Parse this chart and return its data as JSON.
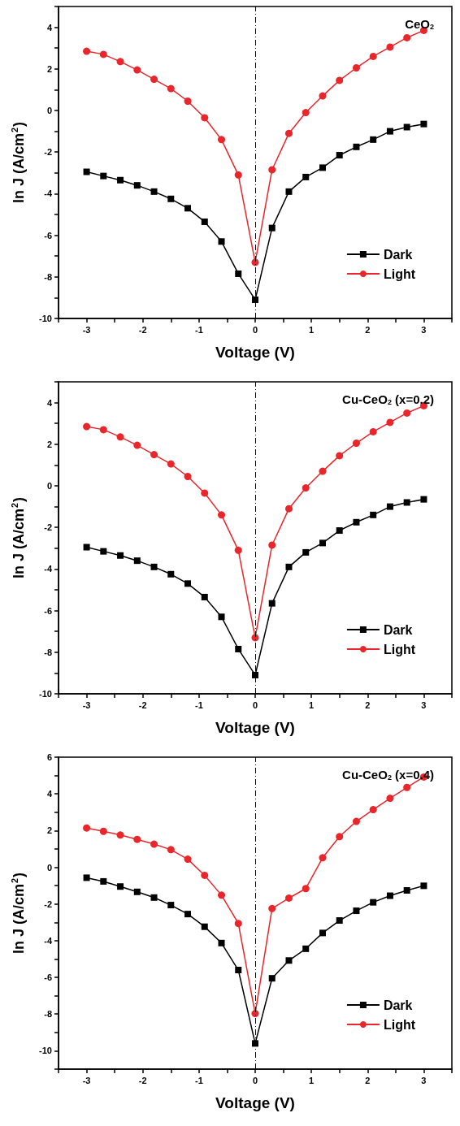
{
  "chart_data": [
    {
      "type": "line",
      "annotations": [
        "CeO$_{2}$"
      ],
      "xlabel": "Voltage (V)",
      "ylabel": "ln J (A/cm$^{2}$)",
      "x": [
        -3,
        -2.7,
        -2.4,
        -2.1,
        -1.8,
        -1.5,
        -1.2,
        -0.9,
        -0.6,
        -0.3,
        0,
        0.3,
        0.6,
        0.9,
        1.2,
        1.5,
        1.8,
        2.1,
        2.4,
        2.7,
        3
      ],
      "series": [
        {
          "name": "Dark",
          "color": "#000000",
          "marker": "square",
          "values": [
            -2.95,
            -3.15,
            -3.35,
            -3.6,
            -3.9,
            -4.25,
            -4.7,
            -5.35,
            -6.3,
            -7.85,
            -9.1,
            -5.65,
            -3.9,
            -3.2,
            -2.75,
            -2.15,
            -1.75,
            -1.4,
            -1.0,
            -0.8,
            -0.65
          ]
        },
        {
          "name": "Light",
          "color": "#e8262b",
          "marker": "circle",
          "values": [
            2.85,
            2.7,
            2.35,
            1.95,
            1.5,
            1.05,
            0.45,
            -0.35,
            -1.4,
            -3.1,
            -7.3,
            -2.85,
            -1.1,
            -0.1,
            0.7,
            1.45,
            2.05,
            2.6,
            3.05,
            3.5,
            3.85
          ]
        }
      ],
      "xlim": [
        -3.5,
        3.5
      ],
      "xticks": [
        {
          "value": -3.5,
          "label": null
        },
        -3,
        {
          "value": -2.5,
          "label": null
        },
        -2,
        {
          "value": -1.5,
          "label": null
        },
        -1,
        {
          "value": -0.5,
          "label": null
        },
        0,
        {
          "value": 0.5,
          "label": null
        },
        1,
        {
          "value": 1.5,
          "label": null
        },
        2,
        {
          "value": 2.5,
          "label": null
        },
        3,
        {
          "value": 3.5,
          "label": null
        }
      ],
      "ylim": [
        -10,
        5
      ],
      "yticks": [
        -10,
        {
          "value": -9,
          "label": null
        },
        -8,
        {
          "value": -7,
          "label": null
        },
        -6,
        {
          "value": -5,
          "label": null
        },
        -4,
        {
          "value": -3,
          "label": null
        },
        -2,
        {
          "value": -1,
          "label": null
        },
        0,
        {
          "value": 1,
          "label": null
        },
        2,
        {
          "value": 3,
          "label": null
        },
        4,
        {
          "value": 5,
          "label": null
        }
      ],
      "ref_lines": [
        {
          "axis": "x",
          "value": 0,
          "color": "#000000",
          "line_style": "dashed"
        }
      ],
      "grid": false,
      "legend": "bottom right",
      "line_style": "solid"
    },
    {
      "type": "line",
      "annotations": [
        "Cu-CeO$_{2}$ (x=0.2)"
      ],
      "xlabel": "Voltage (V)",
      "ylabel": "ln J (A/cm$^{2}$)",
      "x": [
        -3,
        -2.7,
        -2.4,
        -2.1,
        -1.8,
        -1.5,
        -1.2,
        -0.9,
        -0.6,
        -0.3,
        0,
        0.3,
        0.6,
        0.9,
        1.2,
        1.5,
        1.8,
        2.1,
        2.4,
        2.7,
        3
      ],
      "series": [
        {
          "name": "Dark",
          "color": "#000000",
          "marker": "square",
          "values": [
            -2.95,
            -3.15,
            -3.35,
            -3.6,
            -3.9,
            -4.25,
            -4.7,
            -5.35,
            -6.3,
            -7.85,
            -9.1,
            -5.65,
            -3.9,
            -3.2,
            -2.75,
            -2.15,
            -1.75,
            -1.4,
            -1.0,
            -0.8,
            -0.65
          ]
        },
        {
          "name": "Light",
          "color": "#e8262b",
          "marker": "circle",
          "values": [
            2.85,
            2.7,
            2.35,
            1.95,
            1.5,
            1.05,
            0.45,
            -0.35,
            -1.4,
            -3.1,
            -7.3,
            -2.85,
            -1.1,
            -0.1,
            0.7,
            1.45,
            2.05,
            2.6,
            3.05,
            3.5,
            3.85
          ]
        }
      ],
      "xlim": [
        -3.5,
        3.5
      ],
      "xticks": [
        {
          "value": -3.5,
          "label": null
        },
        -3,
        {
          "value": -2.5,
          "label": null
        },
        -2,
        {
          "value": -1.5,
          "label": null
        },
        -1,
        {
          "value": -0.5,
          "label": null
        },
        0,
        {
          "value": 0.5,
          "label": null
        },
        1,
        {
          "value": 1.5,
          "label": null
        },
        2,
        {
          "value": 2.5,
          "label": null
        },
        3,
        {
          "value": 3.5,
          "label": null
        }
      ],
      "ylim": [
        -10,
        5
      ],
      "yticks": [
        -10,
        {
          "value": -9,
          "label": null
        },
        -8,
        {
          "value": -7,
          "label": null
        },
        -6,
        {
          "value": -5,
          "label": null
        },
        -4,
        {
          "value": -3,
          "label": null
        },
        -2,
        {
          "value": -1,
          "label": null
        },
        0,
        {
          "value": 1,
          "label": null
        },
        2,
        {
          "value": 3,
          "label": null
        },
        4,
        {
          "value": 5,
          "label": null
        }
      ],
      "ref_lines": [
        {
          "axis": "x",
          "value": 0,
          "color": "#000000",
          "line_style": "dashed"
        }
      ],
      "grid": false,
      "legend": "bottom right",
      "line_style": "solid"
    },
    {
      "type": "line",
      "annotations": [
        "Cu-CeO$_{2}$ (x=0.4)"
      ],
      "xlabel": "Voltage (V)",
      "ylabel": "ln J (A/cm$^{2}$)",
      "x": [
        -3,
        -2.7,
        -2.4,
        -2.1,
        -1.8,
        -1.5,
        -1.2,
        -0.9,
        -0.6,
        -0.3,
        0,
        0.3,
        0.6,
        0.9,
        1.2,
        1.5,
        1.8,
        2.1,
        2.4,
        2.7,
        3
      ],
      "series": [
        {
          "name": "Dark",
          "color": "#000000",
          "marker": "square",
          "values": [
            -0.57,
            -0.77,
            -1.05,
            -1.34,
            -1.65,
            -2.06,
            -2.55,
            -3.24,
            -4.13,
            -5.6,
            -9.6,
            -6.05,
            -5.08,
            -4.44,
            -3.58,
            -2.9,
            -2.37,
            -1.91,
            -1.55,
            -1.26,
            -1.01
          ]
        },
        {
          "name": "Light",
          "color": "#e8262b",
          "marker": "circle",
          "values": [
            2.14,
            1.96,
            1.76,
            1.52,
            1.26,
            0.96,
            0.44,
            -0.44,
            -1.52,
            -3.06,
            -7.97,
            -2.25,
            -1.68,
            -1.16,
            0.52,
            1.67,
            2.5,
            3.14,
            3.76,
            4.35,
            4.92
          ]
        }
      ],
      "xlim": [
        -3.5,
        3.5
      ],
      "xticks": [
        {
          "value": -3.5,
          "label": null
        },
        -3,
        {
          "value": -2.5,
          "label": null
        },
        -2,
        {
          "value": -1.5,
          "label": null
        },
        -1,
        {
          "value": -0.5,
          "label": null
        },
        0,
        {
          "value": 0.5,
          "label": null
        },
        1,
        {
          "value": 1.5,
          "label": null
        },
        2,
        {
          "value": 2.5,
          "label": null
        },
        3,
        {
          "value": 3.5,
          "label": null
        }
      ],
      "ylim": [
        -11,
        6
      ],
      "yticks": [
        {
          "value": -11,
          "label": null
        },
        -10,
        {
          "value": -9,
          "label": null
        },
        -8,
        {
          "value": -7,
          "label": null
        },
        -6,
        {
          "value": -5,
          "label": null
        },
        -4,
        {
          "value": -3,
          "label": null
        },
        -2,
        {
          "value": -1,
          "label": null
        },
        0,
        {
          "value": 1,
          "label": null
        },
        2,
        {
          "value": 3,
          "label": null
        },
        4,
        {
          "value": 5,
          "label": null
        },
        6
      ],
      "ref_lines": [
        {
          "axis": "x",
          "value": 0,
          "color": "#000000",
          "line_style": "dashed"
        }
      ],
      "grid": false,
      "legend": "bottom right",
      "line_style": "solid"
    }
  ]
}
